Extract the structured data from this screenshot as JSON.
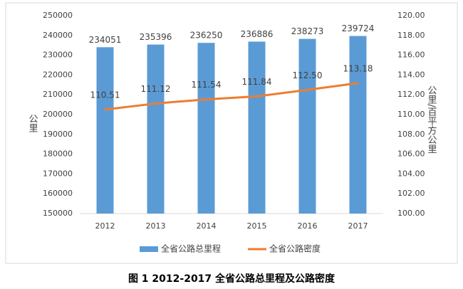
{
  "chart_data": {
    "type": "bar",
    "categories": [
      "2012",
      "2013",
      "2014",
      "2015",
      "2016",
      "2017"
    ],
    "series": [
      {
        "name": "全省公路总里程",
        "type": "bar",
        "color": "#5b9bd5",
        "values": [
          234051,
          235396,
          236250,
          236886,
          238273,
          239724
        ]
      },
      {
        "name": "全省公路密度",
        "type": "line",
        "axis": "y2",
        "color": "#ed7d31",
        "values": [
          110.51,
          111.12,
          111.54,
          111.84,
          112.5,
          113.18
        ],
        "value_labels": [
          "110.51",
          "111.12",
          "111.54",
          "111.84",
          "112.50",
          "113.18"
        ]
      }
    ],
    "y_label": "公里",
    "y2_label": "公里/百平方公里",
    "ylim": [
      150000,
      250000
    ],
    "yticks": [
      150000,
      160000,
      170000,
      180000,
      190000,
      200000,
      210000,
      220000,
      230000,
      240000,
      250000
    ],
    "y2lim": [
      100,
      120
    ],
    "y2ticks": [
      {
        "value": 100,
        "label": "100.00"
      },
      {
        "value": 102,
        "label": "102.00"
      },
      {
        "value": 104,
        "label": "104.00"
      },
      {
        "value": 106,
        "label": "106.00"
      },
      {
        "value": 108,
        "label": "108.00"
      },
      {
        "value": 110,
        "label": "110.00"
      },
      {
        "value": 112,
        "label": "112.00"
      },
      {
        "value": 114,
        "label": "114.00"
      },
      {
        "value": 116,
        "label": "116.00"
      },
      {
        "value": 118,
        "label": "118.00"
      },
      {
        "value": 120,
        "label": "120.00"
      }
    ],
    "grid": false,
    "legend": "bottom",
    "caption": "图 1   2012-2017 全省公路总里程及公路密度"
  }
}
